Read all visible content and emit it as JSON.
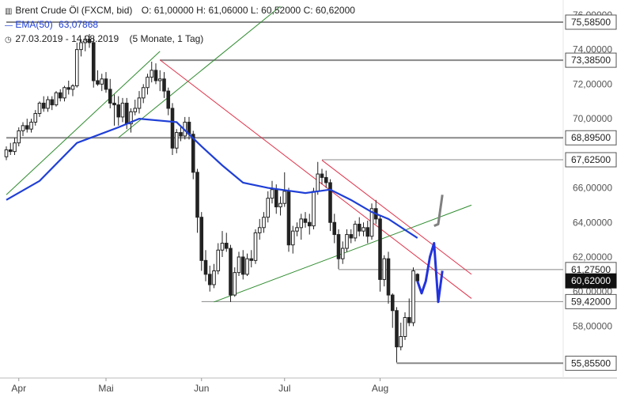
{
  "legend": {
    "title": "Brent Crude Öl (FXCM, bid)",
    "ohlc": "O: 61,00000   H: 61,06000   L: 60,52000   C: 60,62000",
    "ema_label": "EMA(50)",
    "ema_value": "63,07868",
    "range": "27.03.2019 - 14.08.2019",
    "period": "(5 Monate, 1 Tag)"
  },
  "colors": {
    "candle": "#222222",
    "ema": "#1f3fd6",
    "support_line": "#2e8b2e",
    "resistance_line": "#e0324a",
    "level_line": "#888888",
    "projection": "#2233dd",
    "projection_gray": "#808080"
  },
  "chart_data": {
    "type": "candlestick",
    "yrange": [
      55.0,
      76.5
    ],
    "yticks": [
      "76,00000",
      "74,00000",
      "72,00000",
      "70,00000",
      "66,00000",
      "64,00000",
      "62,00000",
      "60,00000",
      "58,00000"
    ],
    "ytick_values": [
      76,
      74,
      72,
      70,
      66,
      64,
      62,
      60,
      58
    ],
    "xticks": [
      "Apr",
      "Mai",
      "Jun",
      "Jul",
      "Aug"
    ],
    "xtick_dates": [
      "2019-04-01",
      "2019-05-01",
      "2019-06-03",
      "2019-07-01",
      "2019-08-01"
    ],
    "levels": [
      {
        "label": "75,58500",
        "value": 75.585
      },
      {
        "label": "73,38500",
        "value": 73.385
      },
      {
        "label": "68,89500",
        "value": 68.895
      },
      {
        "label": "67,62500",
        "value": 67.625
      },
      {
        "label": "61,27500",
        "value": 61.275
      },
      {
        "label": "59,42000",
        "value": 59.42
      },
      {
        "label": "55,85500",
        "value": 55.855
      }
    ],
    "current_price": {
      "label": "60,62000",
      "value": 60.62
    },
    "ema50": [
      [
        "2019-03-27",
        65.3
      ],
      [
        "2019-04-08",
        66.4
      ],
      [
        "2019-04-22",
        68.6
      ],
      [
        "2019-05-06",
        69.5
      ],
      [
        "2019-05-13",
        70.0
      ],
      [
        "2019-05-24",
        69.8
      ],
      [
        "2019-06-03",
        68.4
      ],
      [
        "2019-06-10",
        67.3
      ],
      [
        "2019-06-17",
        66.3
      ],
      [
        "2019-06-25",
        66.0
      ],
      [
        "2019-07-08",
        65.7
      ],
      [
        "2019-07-16",
        65.9
      ],
      [
        "2019-07-23",
        65.3
      ],
      [
        "2019-07-30",
        64.6
      ],
      [
        "2019-08-05",
        64.2
      ],
      [
        "2019-08-14",
        63.1
      ]
    ],
    "candles": [
      [
        "2019-03-27",
        67.8,
        68.4,
        67.6,
        68.2
      ],
      [
        "2019-03-28",
        68.2,
        68.6,
        67.9,
        68.1
      ],
      [
        "2019-03-29",
        68.1,
        68.9,
        67.9,
        68.6
      ],
      [
        "2019-04-01",
        68.6,
        69.5,
        68.4,
        69.3
      ],
      [
        "2019-04-02",
        69.3,
        69.8,
        69.0,
        69.6
      ],
      [
        "2019-04-03",
        69.6,
        70.0,
        69.2,
        69.4
      ],
      [
        "2019-04-04",
        69.4,
        70.0,
        69.2,
        69.8
      ],
      [
        "2019-04-05",
        69.8,
        70.5,
        69.6,
        70.3
      ],
      [
        "2019-04-08",
        70.3,
        71.0,
        70.1,
        70.9
      ],
      [
        "2019-04-09",
        70.9,
        71.3,
        70.4,
        70.6
      ],
      [
        "2019-04-10",
        70.6,
        71.3,
        70.4,
        71.1
      ],
      [
        "2019-04-11",
        71.1,
        71.3,
        70.5,
        70.8
      ],
      [
        "2019-04-12",
        70.8,
        71.6,
        70.7,
        71.5
      ],
      [
        "2019-04-15",
        71.5,
        71.7,
        71.0,
        71.2
      ],
      [
        "2019-04-16",
        71.2,
        71.9,
        71.0,
        71.8
      ],
      [
        "2019-04-17",
        71.8,
        72.2,
        71.4,
        71.7
      ],
      [
        "2019-04-18",
        71.7,
        72.0,
        71.3,
        71.9
      ],
      [
        "2019-04-22",
        71.9,
        74.4,
        71.8,
        74.0
      ],
      [
        "2019-04-23",
        74.0,
        74.6,
        73.6,
        74.4
      ],
      [
        "2019-04-24",
        74.4,
        74.8,
        73.9,
        74.6
      ],
      [
        "2019-04-25",
        74.6,
        74.9,
        74.1,
        74.4
      ],
      [
        "2019-04-26",
        74.4,
        74.7,
        71.8,
        72.2
      ],
      [
        "2019-04-29",
        72.2,
        72.8,
        71.9,
        72.0
      ],
      [
        "2019-04-30",
        72.0,
        72.6,
        71.6,
        72.3
      ],
      [
        "2019-05-01",
        72.3,
        72.7,
        71.5,
        71.7
      ],
      [
        "2019-05-02",
        71.7,
        72.3,
        70.6,
        70.9
      ],
      [
        "2019-05-03",
        70.9,
        71.4,
        69.6,
        70.8
      ],
      [
        "2019-05-06",
        70.8,
        71.3,
        69.6,
        70.1
      ],
      [
        "2019-05-07",
        70.1,
        71.2,
        69.8,
        70.9
      ],
      [
        "2019-05-08",
        70.9,
        71.2,
        69.4,
        69.7
      ],
      [
        "2019-05-09",
        69.7,
        70.6,
        69.2,
        70.4
      ],
      [
        "2019-05-10",
        70.4,
        71.1,
        70.2,
        70.6
      ],
      [
        "2019-05-13",
        70.6,
        71.6,
        70.3,
        71.2
      ],
      [
        "2019-05-14",
        71.2,
        72.0,
        70.9,
        71.8
      ],
      [
        "2019-05-15",
        71.8,
        72.6,
        71.4,
        72.4
      ],
      [
        "2019-05-16",
        72.4,
        73.3,
        72.1,
        72.8
      ],
      [
        "2019-05-17",
        72.8,
        73.2,
        72.0,
        72.2
      ],
      [
        "2019-05-20",
        72.2,
        72.8,
        71.6,
        72.3
      ],
      [
        "2019-05-21",
        72.3,
        72.7,
        71.2,
        71.6
      ],
      [
        "2019-05-22",
        71.6,
        71.8,
        70.2,
        70.6
      ],
      [
        "2019-05-23",
        70.6,
        70.9,
        67.9,
        68.3
      ],
      [
        "2019-05-24",
        68.3,
        69.4,
        68.0,
        69.2
      ],
      [
        "2019-05-27",
        69.2,
        69.6,
        68.7,
        69.0
      ],
      [
        "2019-05-28",
        69.0,
        70.1,
        68.8,
        69.8
      ],
      [
        "2019-05-29",
        69.8,
        70.1,
        68.8,
        69.1
      ],
      [
        "2019-05-30",
        69.1,
        69.3,
        66.5,
        66.9
      ],
      [
        "2019-05-31",
        66.9,
        67.1,
        63.4,
        64.3
      ],
      [
        "2019-06-03",
        64.3,
        64.6,
        61.2,
        61.8
      ],
      [
        "2019-06-04",
        61.8,
        62.4,
        60.6,
        61.0
      ],
      [
        "2019-06-05",
        61.0,
        61.5,
        60.0,
        60.4
      ],
      [
        "2019-06-06",
        60.4,
        61.6,
        60.2,
        61.2
      ],
      [
        "2019-06-07",
        61.2,
        62.8,
        61.0,
        62.4
      ],
      [
        "2019-06-10",
        62.4,
        63.5,
        62.0,
        62.8
      ],
      [
        "2019-06-11",
        62.8,
        63.4,
        62.3,
        62.5
      ],
      [
        "2019-06-12",
        62.5,
        62.7,
        59.4,
        59.8
      ],
      [
        "2019-06-13",
        59.8,
        61.4,
        59.7,
        61.1
      ],
      [
        "2019-06-14",
        61.1,
        62.3,
        60.9,
        62.0
      ],
      [
        "2019-06-17",
        62.0,
        62.4,
        60.7,
        61.0
      ],
      [
        "2019-06-18",
        61.0,
        62.2,
        60.9,
        61.9
      ],
      [
        "2019-06-19",
        61.9,
        62.4,
        61.4,
        61.8
      ],
      [
        "2019-06-20",
        61.8,
        63.6,
        61.6,
        63.4
      ],
      [
        "2019-06-21",
        63.4,
        64.2,
        63.0,
        63.7
      ],
      [
        "2019-06-24",
        63.7,
        64.6,
        63.4,
        64.3
      ],
      [
        "2019-06-25",
        64.3,
        65.8,
        64.0,
        65.4
      ],
      [
        "2019-06-26",
        65.4,
        66.4,
        65.1,
        65.9
      ],
      [
        "2019-06-27",
        65.9,
        66.2,
        64.5,
        64.9
      ],
      [
        "2019-06-28",
        64.9,
        65.5,
        64.4,
        65.1
      ],
      [
        "2019-07-01",
        65.1,
        66.9,
        64.9,
        65.8
      ],
      [
        "2019-07-02",
        65.8,
        66.0,
        62.3,
        62.7
      ],
      [
        "2019-07-03",
        62.7,
        63.8,
        62.2,
        63.5
      ],
      [
        "2019-07-04",
        63.5,
        64.0,
        63.2,
        63.7
      ],
      [
        "2019-07-05",
        63.7,
        64.5,
        63.0,
        64.2
      ],
      [
        "2019-07-08",
        64.2,
        64.6,
        63.7,
        64.0
      ],
      [
        "2019-07-09",
        64.0,
        64.5,
        63.3,
        63.8
      ],
      [
        "2019-07-10",
        63.8,
        66.0,
        63.6,
        65.8
      ],
      [
        "2019-07-11",
        65.8,
        67.5,
        65.6,
        66.8
      ],
      [
        "2019-07-12",
        66.8,
        67.1,
        66.2,
        66.6
      ],
      [
        "2019-07-15",
        66.6,
        67.0,
        66.0,
        66.3
      ],
      [
        "2019-07-16",
        66.3,
        66.5,
        63.5,
        64.0
      ],
      [
        "2019-07-17",
        64.0,
        64.5,
        62.8,
        63.3
      ],
      [
        "2019-07-18",
        63.3,
        63.6,
        61.3,
        61.9
      ],
      [
        "2019-07-19",
        61.9,
        62.9,
        61.6,
        62.5
      ],
      [
        "2019-07-22",
        62.5,
        63.6,
        62.3,
        63.3
      ],
      [
        "2019-07-23",
        63.3,
        63.6,
        62.8,
        63.1
      ],
      [
        "2019-07-24",
        63.1,
        64.1,
        62.9,
        63.9
      ],
      [
        "2019-07-25",
        63.9,
        64.3,
        63.2,
        63.5
      ],
      [
        "2019-07-26",
        63.5,
        64.0,
        63.2,
        63.7
      ],
      [
        "2019-07-29",
        63.7,
        64.1,
        62.8,
        63.2
      ],
      [
        "2019-07-30",
        63.2,
        65.1,
        63.0,
        64.8
      ],
      [
        "2019-07-31",
        64.8,
        65.3,
        63.9,
        64.2
      ],
      [
        "2019-08-01",
        64.2,
        64.4,
        60.0,
        60.7
      ],
      [
        "2019-08-02",
        60.7,
        62.1,
        60.3,
        61.9
      ],
      [
        "2019-08-05",
        61.9,
        62.3,
        59.3,
        59.8
      ],
      [
        "2019-08-06",
        59.8,
        59.9,
        57.9,
        58.9
      ],
      [
        "2019-08-07",
        58.9,
        59.1,
        55.9,
        56.8
      ],
      [
        "2019-08-08",
        56.8,
        58.2,
        56.6,
        57.4
      ],
      [
        "2019-08-09",
        57.4,
        58.8,
        57.2,
        58.5
      ],
      [
        "2019-08-12",
        58.5,
        59.6,
        58.0,
        58.2
      ],
      [
        "2019-08-13",
        58.2,
        61.4,
        58.0,
        61.2
      ],
      [
        "2019-08-14",
        61.0,
        61.06,
        60.52,
        60.62
      ]
    ],
    "trendlines": [
      {
        "kind": "support",
        "from": [
          "2019-03-27",
          65.6
        ],
        "to": [
          "2019-05-20",
          73.9
        ]
      },
      {
        "kind": "support",
        "from": [
          "2019-05-06",
          68.9
        ],
        "to": [
          "2019-06-28",
          76.5
        ]
      },
      {
        "kind": "support",
        "from": [
          "2019-06-06",
          59.4
        ],
        "to": [
          "2019-08-31",
          65.0
        ]
      },
      {
        "kind": "resistance",
        "from": [
          "2019-05-20",
          73.4
        ],
        "to": [
          "2019-08-31",
          59.6
        ]
      },
      {
        "kind": "resistance",
        "from": [
          "2019-07-12",
          67.6
        ],
        "to": [
          "2019-08-31",
          61.0
        ]
      }
    ],
    "level_segments": [
      {
        "level": 75.585,
        "from": "2019-03-27"
      },
      {
        "level": 73.385,
        "from": "2019-05-20"
      },
      {
        "level": 68.895,
        "from": "2019-03-27"
      },
      {
        "level": 67.625,
        "from": "2019-07-12"
      },
      {
        "level": 61.275,
        "from": "2019-07-18"
      },
      {
        "level": 59.42,
        "from": "2019-06-03"
      },
      {
        "level": 55.855,
        "from": "2019-08-07"
      }
    ],
    "projection": [
      [
        "2019-08-14",
        60.6
      ],
      [
        "2019-08-15",
        59.9
      ],
      [
        "2019-08-16",
        60.6
      ],
      [
        "2019-08-19",
        62.0
      ],
      [
        "2019-08-20",
        62.8
      ],
      [
        "2019-08-21",
        59.4
      ],
      [
        "2019-08-22",
        61.2
      ]
    ],
    "projection_gray": [
      [
        "2019-08-20",
        63.8
      ],
      [
        "2019-08-21",
        63.9
      ],
      [
        "2019-08-22",
        65.6
      ]
    ]
  }
}
